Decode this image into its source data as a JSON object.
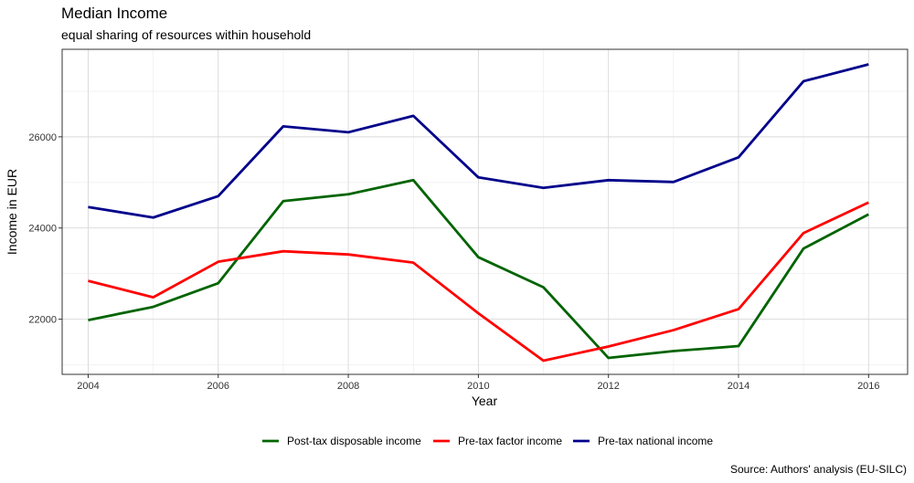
{
  "chart_data": {
    "type": "line",
    "title": "Median Income",
    "subtitle": "equal sharing of resources within household",
    "xlabel": "Year",
    "ylabel": "Income in EUR",
    "caption": "Source: Authors' analysis (EU-SILC)",
    "x": [
      2004,
      2005,
      2006,
      2007,
      2008,
      2009,
      2010,
      2011,
      2012,
      2013,
      2014,
      2015,
      2016
    ],
    "xticks": [
      2004,
      2006,
      2008,
      2010,
      2012,
      2014,
      2016
    ],
    "xlim": [
      2003.6,
      2016.6
    ],
    "yticks": [
      22000,
      24000,
      26000
    ],
    "ylim": [
      20790,
      27920
    ],
    "grid": true,
    "legend_position": "bottom",
    "series": [
      {
        "name": "Post-tax disposable income",
        "color": "#006400",
        "values": [
          21980,
          22270,
          22790,
          24590,
          24740,
          25050,
          23360,
          22700,
          21150,
          21300,
          21410,
          23550,
          24300
        ]
      },
      {
        "name": "Pre-tax factor income",
        "color": "#ff0000",
        "values": [
          22840,
          22480,
          23260,
          23490,
          23420,
          23240,
          22130,
          21090,
          21400,
          21760,
          22220,
          23890,
          24560
        ]
      },
      {
        "name": "Pre-tax national income",
        "color": "#00008b",
        "values": [
          24460,
          24230,
          24700,
          26230,
          26100,
          26460,
          25110,
          24880,
          25050,
          25010,
          25550,
          27220,
          27590
        ]
      }
    ]
  }
}
